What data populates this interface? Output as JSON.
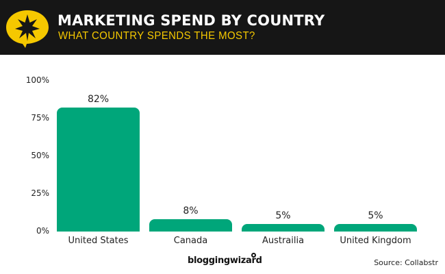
{
  "header": {
    "title": "MARKETING SPEND BY COUNTRY",
    "subtitle": "WHAT COUNTRY SPENDS THE MOST?",
    "logo_icon": "star-speech-bubble-icon"
  },
  "colors": {
    "header_bg": "#161616",
    "accent_yellow": "#f5c800",
    "bar": "#00a67a"
  },
  "chart_data": {
    "type": "bar",
    "title": "Marketing Spend By Country",
    "subtitle": "What country spends the most?",
    "categories": [
      "United States",
      "Canada",
      "Austrailia",
      "United Kingdom"
    ],
    "values": [
      82,
      8,
      5,
      5
    ],
    "value_labels": [
      "82%",
      "8%",
      "5%",
      "5%"
    ],
    "xlabel": "",
    "ylabel": "",
    "ylim": [
      0,
      100
    ],
    "yticks": [
      "0%",
      "25%",
      "50%",
      "75%",
      "100%"
    ],
    "grid": false,
    "legend": null
  },
  "footer": {
    "brand": "bloggingwizard",
    "source": "Source: Collabstr"
  }
}
